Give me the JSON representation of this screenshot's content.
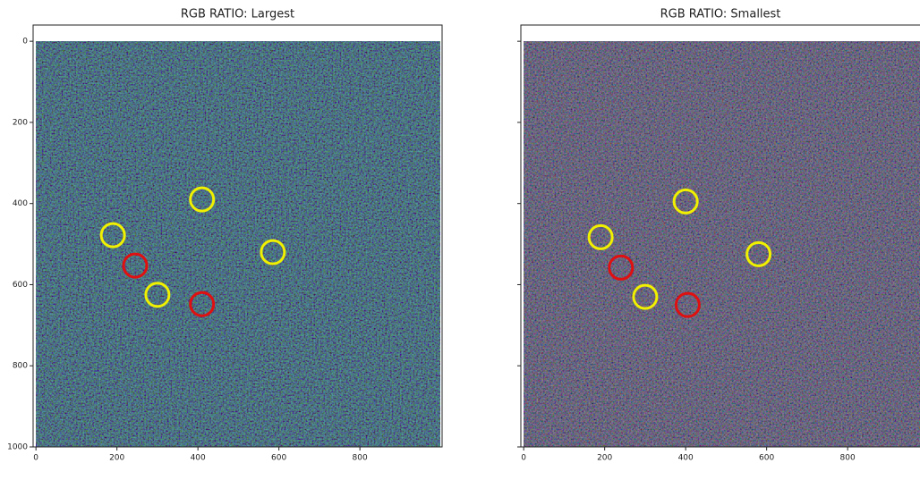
{
  "chart_data": [
    {
      "type": "image",
      "title": "RGB RATIO: Largest",
      "xlim": [
        -7,
        1003
      ],
      "ylim": [
        1000,
        -40
      ],
      "xticks": [
        0,
        200,
        400,
        600,
        800
      ],
      "yticks": [
        0,
        200,
        400,
        600,
        800,
        1000
      ],
      "markers": [
        {
          "x": 410,
          "y": 390,
          "color": "#f0f000"
        },
        {
          "x": 190,
          "y": 478,
          "color": "#f0f000"
        },
        {
          "x": 300,
          "y": 625,
          "color": "#f0f000"
        },
        {
          "x": 585,
          "y": 520,
          "color": "#f0f000"
        },
        {
          "x": 245,
          "y": 553,
          "color": "#e01010"
        },
        {
          "x": 410,
          "y": 648,
          "color": "#e01010"
        }
      ]
    },
    {
      "type": "image",
      "title": "RGB RATIO: Smallest",
      "xlim": [
        -7,
        1003
      ],
      "ylim": [
        1000,
        -40
      ],
      "xticks": [
        0,
        200,
        400,
        600,
        800
      ],
      "markers": [
        {
          "x": 400,
          "y": 395,
          "color": "#f0f000"
        },
        {
          "x": 190,
          "y": 483,
          "color": "#f0f000"
        },
        {
          "x": 300,
          "y": 630,
          "color": "#f0f000"
        },
        {
          "x": 580,
          "y": 525,
          "color": "#f0f000"
        },
        {
          "x": 240,
          "y": 558,
          "color": "#e01010"
        },
        {
          "x": 405,
          "y": 650,
          "color": "#e01010"
        }
      ]
    }
  ]
}
